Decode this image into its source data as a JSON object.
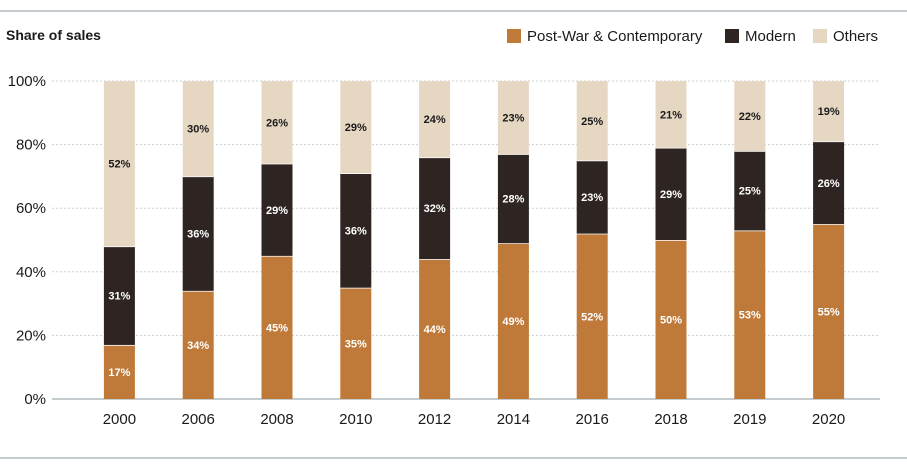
{
  "chart_data": {
    "type": "bar",
    "stacked": true,
    "title": "Share of sales",
    "xlabel": "",
    "ylabel": "",
    "ylim": [
      0,
      100
    ],
    "y_ticks": [
      "0%",
      "20%",
      "40%",
      "60%",
      "80%",
      "100%"
    ],
    "grid": "horizontal",
    "legend_position": "top-right",
    "categories": [
      "2000",
      "2006",
      "2008",
      "2010",
      "2012",
      "2014",
      "2016",
      "2018",
      "2019",
      "2020"
    ],
    "series": [
      {
        "name": "Post-War & Contemporary",
        "color": "#bf7a3a",
        "label_color": "#ffffff",
        "values": [
          17,
          34,
          45,
          35,
          44,
          49,
          52,
          50,
          53,
          55
        ],
        "labels": [
          "17%",
          "34%",
          "45%",
          "35%",
          "44%",
          "49%",
          "52%",
          "50%",
          "53%",
          "55%"
        ]
      },
      {
        "name": "Modern",
        "color": "#2e2522",
        "label_color": "#ffffff",
        "values": [
          31,
          36,
          29,
          36,
          32,
          28,
          23,
          29,
          25,
          26
        ],
        "labels": [
          "31%",
          "36%",
          "29%",
          "36%",
          "32%",
          "28%",
          "23%",
          "29%",
          "25%",
          "26%"
        ]
      },
      {
        "name": "Others",
        "color": "#e6d7c2",
        "label_color": "#1a1a1a",
        "values": [
          52,
          30,
          26,
          29,
          24,
          23,
          25,
          21,
          22,
          19
        ],
        "labels": [
          "52%",
          "30%",
          "26%",
          "29%",
          "24%",
          "23%",
          "25%",
          "21%",
          "22%",
          "19%"
        ]
      }
    ]
  }
}
